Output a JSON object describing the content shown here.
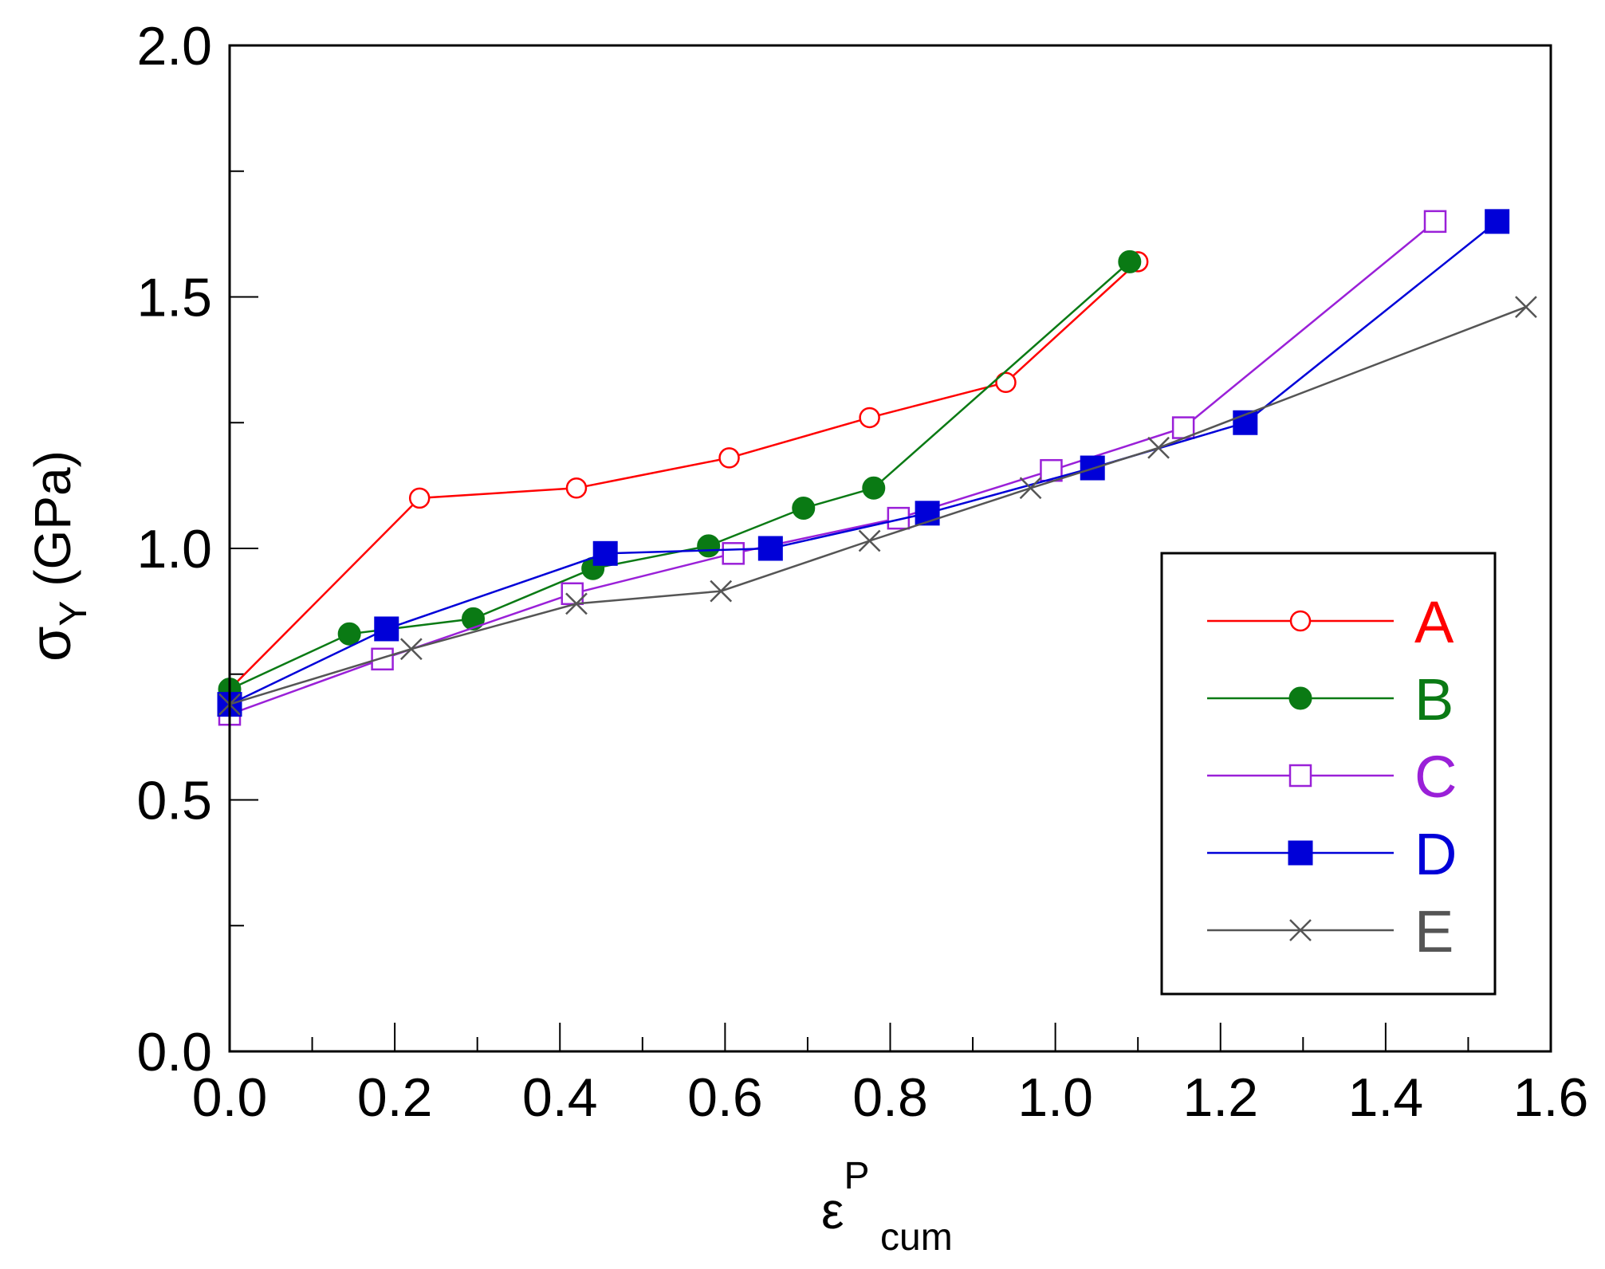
{
  "chart_data": {
    "type": "line",
    "title": "",
    "xlabel": {
      "main": "ε",
      "sup": "P",
      "sub": "cum"
    },
    "ylabel": {
      "main": "σ",
      "sub": "Y",
      "rest": " (GPa)"
    },
    "xlim": [
      0.0,
      1.6
    ],
    "ylim": [
      0.0,
      2.0
    ],
    "x_major_ticks": [
      0.0,
      0.2,
      0.4,
      0.6,
      0.8,
      1.0,
      1.2,
      1.4,
      1.6
    ],
    "x_tick_labels": [
      "0.0",
      "0.2",
      "0.4",
      "0.6",
      "0.8",
      "1.0",
      "1.2",
      "1.4",
      "1.6"
    ],
    "y_major_ticks": [
      0.0,
      0.5,
      1.0,
      1.5,
      2.0
    ],
    "y_tick_labels": [
      "0.0",
      "0.5",
      "1.0",
      "1.5",
      "2.0"
    ],
    "grid": false,
    "legend_position": "bottom-right",
    "series": [
      {
        "name": "A",
        "color": "#ff0000",
        "marker": "open-circle",
        "x": [
          0.0,
          0.23,
          0.42,
          0.605,
          0.775,
          0.94,
          1.1
        ],
        "y": [
          0.72,
          1.1,
          1.12,
          1.18,
          1.26,
          1.33,
          1.57
        ]
      },
      {
        "name": "B",
        "color": "#0a7a14",
        "marker": "filled-circle",
        "x": [
          0.0,
          0.145,
          0.295,
          0.44,
          0.58,
          0.695,
          0.78,
          1.09
        ],
        "y": [
          0.72,
          0.83,
          0.86,
          0.96,
          1.005,
          1.08,
          1.12,
          1.57
        ]
      },
      {
        "name": "C",
        "color": "#9a20d8",
        "marker": "open-square",
        "x": [
          0.0,
          0.185,
          0.415,
          0.61,
          0.81,
          0.995,
          1.155,
          1.46
        ],
        "y": [
          0.67,
          0.78,
          0.91,
          0.99,
          1.06,
          1.155,
          1.24,
          1.65
        ]
      },
      {
        "name": "D",
        "color": "#0000d8",
        "marker": "filled-square",
        "x": [
          0.0,
          0.19,
          0.455,
          0.655,
          0.845,
          1.045,
          1.23,
          1.535
        ],
        "y": [
          0.69,
          0.84,
          0.99,
          1.0,
          1.07,
          1.16,
          1.25,
          1.65
        ]
      },
      {
        "name": "E",
        "color": "#555555",
        "marker": "cross",
        "x": [
          0.0,
          0.22,
          0.42,
          0.595,
          0.775,
          0.97,
          1.125,
          1.57
        ],
        "y": [
          0.69,
          0.8,
          0.89,
          0.915,
          1.015,
          1.12,
          1.2,
          1.48
        ]
      }
    ]
  }
}
